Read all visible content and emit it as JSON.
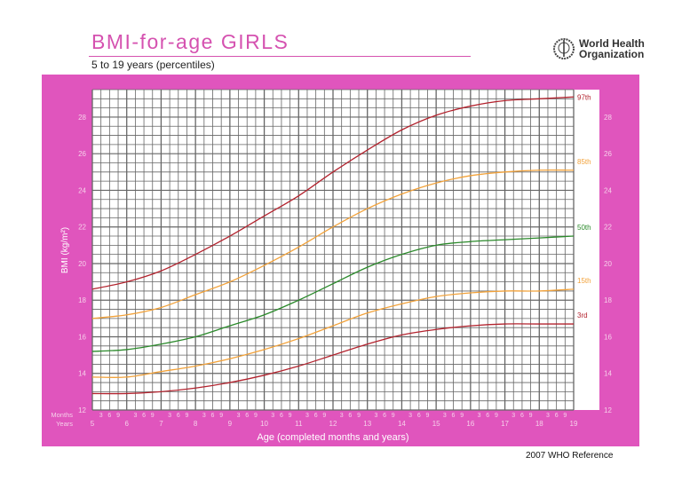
{
  "header": {
    "title": "BMI-for-age  GIRLS",
    "subtitle": "5 to 19 years (percentiles)",
    "org_name_line1": "World Health",
    "org_name_line2": "Organization"
  },
  "footer": {
    "reference": "2007 WHO Reference"
  },
  "colors": {
    "background": "#e055bd",
    "red": "#b3232e",
    "orange": "#f2a23a",
    "green": "#2b8a2b"
  },
  "chart_data": {
    "type": "line",
    "xlabel": "Age (completed months and years)",
    "ylabel": "BMI (kg/m²)",
    "x_row_labels": {
      "months": "Months",
      "years": "Years"
    },
    "month_ticks": [
      "3",
      "6",
      "9"
    ],
    "xlim": [
      5,
      19
    ],
    "ylim": [
      12,
      29.5
    ],
    "x_ticks": [
      5,
      6,
      7,
      8,
      9,
      10,
      11,
      12,
      13,
      14,
      15,
      16,
      17,
      18,
      19
    ],
    "y_ticks": [
      12,
      14,
      16,
      18,
      20,
      22,
      24,
      26,
      28
    ],
    "grid": true,
    "x": [
      5,
      6,
      7,
      8,
      9,
      10,
      11,
      12,
      13,
      14,
      15,
      16,
      17,
      18,
      19
    ],
    "series": [
      {
        "name": "97th",
        "color": "#b3232e",
        "values": [
          18.6,
          19.0,
          19.6,
          20.5,
          21.5,
          22.6,
          23.7,
          25.0,
          26.2,
          27.3,
          28.1,
          28.6,
          28.9,
          29.0,
          29.1
        ]
      },
      {
        "name": "85th",
        "color": "#f2a23a",
        "values": [
          17.0,
          17.2,
          17.6,
          18.3,
          19.0,
          19.9,
          20.9,
          22.0,
          23.0,
          23.8,
          24.4,
          24.8,
          25.0,
          25.1,
          25.1
        ]
      },
      {
        "name": "50th",
        "color": "#2b8a2b",
        "values": [
          15.2,
          15.3,
          15.6,
          16.0,
          16.6,
          17.2,
          18.0,
          18.9,
          19.8,
          20.5,
          21.0,
          21.2,
          21.3,
          21.4,
          21.5
        ]
      },
      {
        "name": "15th",
        "color": "#f2a23a",
        "values": [
          13.8,
          13.8,
          14.1,
          14.4,
          14.8,
          15.3,
          15.9,
          16.6,
          17.3,
          17.8,
          18.2,
          18.4,
          18.5,
          18.5,
          18.6
        ]
      },
      {
        "name": "3rd",
        "color": "#b3232e",
        "values": [
          12.9,
          12.9,
          13.0,
          13.2,
          13.5,
          13.9,
          14.4,
          15.0,
          15.6,
          16.1,
          16.4,
          16.6,
          16.7,
          16.7,
          16.7
        ]
      }
    ]
  }
}
